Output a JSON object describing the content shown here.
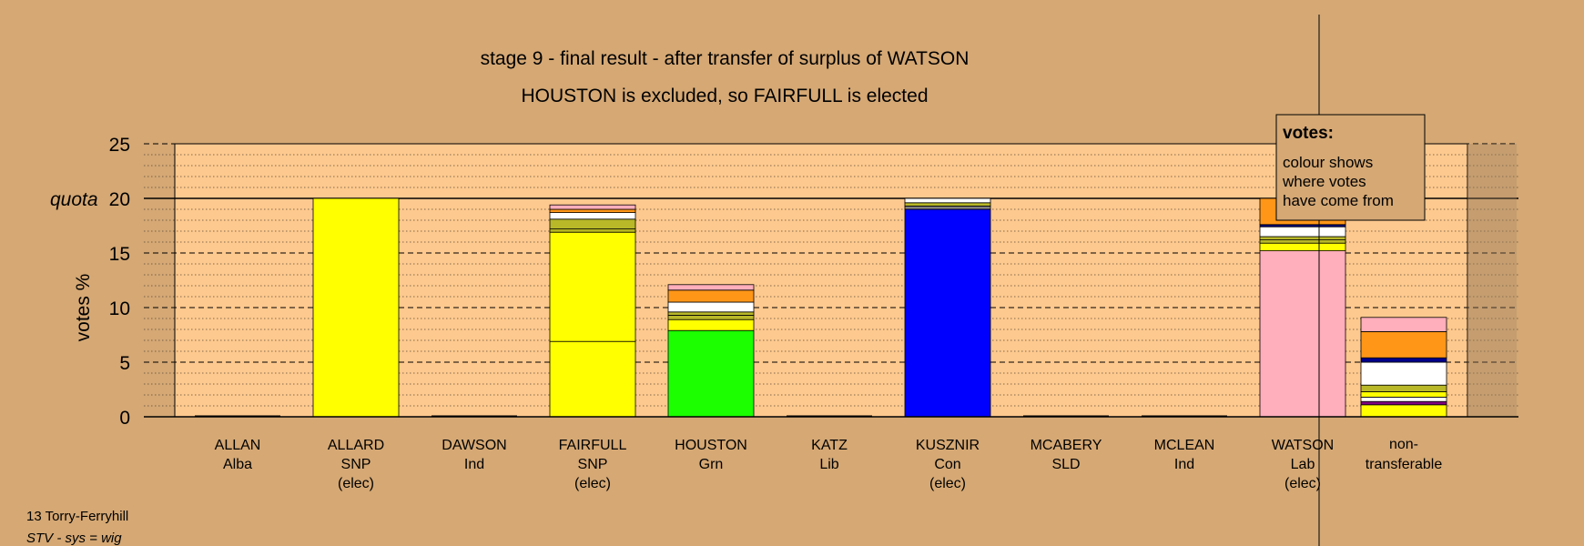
{
  "chart_data": {
    "type": "bar",
    "title": "stage 9 - final result - after transfer of surplus of WATSON",
    "subtitle": "HOUSTON is excluded, so FAIRFULL is elected",
    "ylabel": "votes %",
    "ylim": [
      0,
      25
    ],
    "yticks": [
      "0",
      "5",
      "10",
      "15",
      "20",
      "25"
    ],
    "quota": {
      "label": "quota",
      "value": 20
    },
    "legend": {
      "heading": "votes:",
      "lines": [
        "colour shows",
        "where votes",
        "have come from"
      ],
      "placement": "top-right"
    },
    "footer": {
      "line1": "13 Torry-Ferryhill",
      "line2": "STV - sys = wig"
    },
    "colors": {
      "background": "#d5a874",
      "plot": "#fec98e"
    },
    "categories": [
      {
        "name": "ALLAN",
        "party": "Alba",
        "status": "",
        "segments": []
      },
      {
        "name": "ALLARD",
        "party": "SNP",
        "status": "(elec)",
        "segments": [
          {
            "value": 20.0,
            "color": "#ffff00"
          }
        ]
      },
      {
        "name": "DAWSON",
        "party": "Ind",
        "status": "",
        "segments": []
      },
      {
        "name": "FAIRFULL",
        "party": "SNP",
        "status": "(elec)",
        "segments": [
          {
            "value": 6.9,
            "color": "#ffff00"
          },
          {
            "value": 10.0,
            "color": "#ffff00"
          },
          {
            "value": 0.3,
            "color": "#b5b520"
          },
          {
            "value": 0.9,
            "color": "#b8b829"
          },
          {
            "value": 0.6,
            "color": "#ffffff"
          },
          {
            "value": 0.3,
            "color": "#ff9618"
          },
          {
            "value": 0.4,
            "color": "#ffaebb"
          }
        ]
      },
      {
        "name": "HOUSTON",
        "party": "Grn",
        "status": "",
        "segments": [
          {
            "value": 7.9,
            "color": "#1cff00"
          },
          {
            "value": 1.0,
            "color": "#ffff00"
          },
          {
            "value": 0.4,
            "color": "#b8b829"
          },
          {
            "value": 0.3,
            "color": "#b8b829"
          },
          {
            "value": 0.9,
            "color": "#ffffff"
          },
          {
            "value": 1.1,
            "color": "#ff9618"
          },
          {
            "value": 0.5,
            "color": "#ffaebb"
          }
        ]
      },
      {
        "name": "KATZ",
        "party": "Lib",
        "status": "",
        "segments": []
      },
      {
        "name": "KUSZNIR",
        "party": "Con",
        "status": "(elec)",
        "segments": [
          {
            "value": 19.0,
            "color": "#0000ff"
          },
          {
            "value": 0.3,
            "color": "#808080"
          },
          {
            "value": 0.3,
            "color": "#b8b829"
          },
          {
            "value": 0.4,
            "color": "#ffffff"
          }
        ]
      },
      {
        "name": "MCABERY",
        "party": "SLD",
        "status": "",
        "segments": []
      },
      {
        "name": "MCLEAN",
        "party": "Ind",
        "status": "",
        "segments": []
      },
      {
        "name": "WATSON",
        "party": "Lab",
        "status": "(elec)",
        "segments": [
          {
            "value": 15.2,
            "color": "#ffaebb"
          },
          {
            "value": 0.7,
            "color": "#ffff00"
          },
          {
            "value": 0.3,
            "color": "#b8b829"
          },
          {
            "value": 0.3,
            "color": "#b8b829"
          },
          {
            "value": 0.9,
            "color": "#ffffff"
          },
          {
            "value": 0.2,
            "color": "#000080"
          },
          {
            "value": 2.4,
            "color": "#ff9618"
          }
        ]
      }
    ],
    "nontransferable": {
      "label1": "non-",
      "label2": "transferable",
      "segments": [
        {
          "value": 1.1,
          "color": "#ffff00"
        },
        {
          "value": 0.3,
          "color": "#800080"
        },
        {
          "value": 0.4,
          "color": "#ffffff"
        },
        {
          "value": 0.5,
          "color": "#ffff00"
        },
        {
          "value": 0.6,
          "color": "#b8b829"
        },
        {
          "value": 2.1,
          "color": "#ffffff"
        },
        {
          "value": 0.4,
          "color": "#00008b"
        },
        {
          "value": 2.4,
          "color": "#ff9618"
        },
        {
          "value": 1.3,
          "color": "#ffaebb"
        }
      ]
    }
  }
}
